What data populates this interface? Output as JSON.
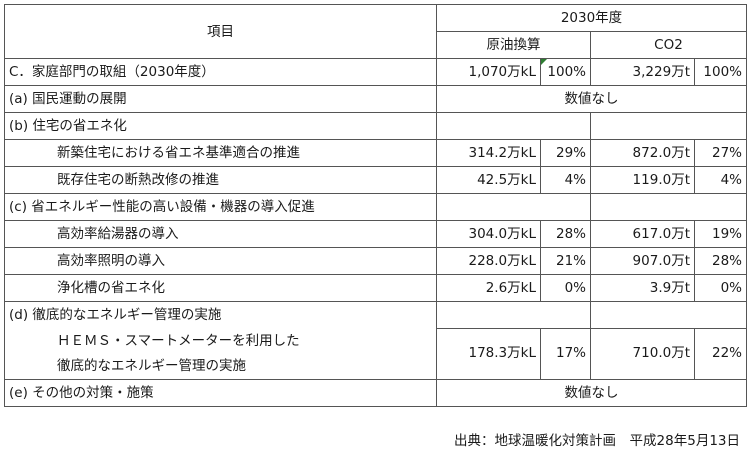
{
  "table": {
    "header": {
      "item": "項目",
      "year": "2030年度",
      "oil": "原油換算",
      "co2": "CO2"
    },
    "rows": {
      "c_total": {
        "label": "C．家庭部門の取組（2030年度）",
        "oil": "1,070万kL",
        "oil_pct": "100%",
        "co2": "3,229万t",
        "co2_pct": "100%"
      },
      "a": {
        "label": "(a) 国民運動の展開",
        "note": "数値なし"
      },
      "b": {
        "label": "(b) 住宅の省エネ化"
      },
      "b1": {
        "label": "新築住宅における省エネ基準適合の推進",
        "oil": "314.2万kL",
        "oil_pct": "29%",
        "co2": "872.0万t",
        "co2_pct": "27%"
      },
      "b2": {
        "label": "既存住宅の断熱改修の推進",
        "oil": "42.5万kL",
        "oil_pct": "4%",
        "co2": "119.0万t",
        "co2_pct": "4%"
      },
      "c": {
        "label": "(c) 省エネルギー性能の高い設備・機器の導入促進"
      },
      "c1": {
        "label": "高効率給湯器の導入",
        "oil": "304.0万kL",
        "oil_pct": "28%",
        "co2": "617.0万t",
        "co2_pct": "19%"
      },
      "c2": {
        "label": "高効率照明の導入",
        "oil": "228.0万kL",
        "oil_pct": "21%",
        "co2": "907.0万t",
        "co2_pct": "28%"
      },
      "c3": {
        "label": "浄化槽の省エネ化",
        "oil": "2.6万kL",
        "oil_pct": "0%",
        "co2": "3.9万t",
        "co2_pct": "0%"
      },
      "d": {
        "label": "(d) 徹底的なエネルギー管理の実施"
      },
      "d1": {
        "label_line1": "ＨＥＭＳ・スマートメーターを利用した",
        "label_line2": "徹底的なエネルギー管理の実施",
        "oil": "178.3万kL",
        "oil_pct": "17%",
        "co2": "710.0万t",
        "co2_pct": "22%"
      },
      "e": {
        "label": "(e) その他の対策・施策",
        "note": "数値なし"
      }
    }
  },
  "source": "出典：地球温暖化対策計画　平成28年5月13日",
  "colors": {
    "border": "#555555",
    "marker": "#2e7d32"
  }
}
